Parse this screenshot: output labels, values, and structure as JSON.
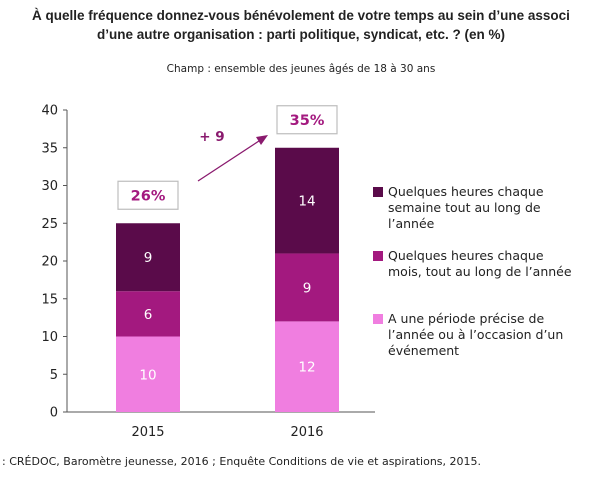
{
  "title_line1": "À quelle fréquence donnez-vous bénévolement de votre temps au sein d’une associ",
  "title_line2": "d’une autre organisation : parti politique, syndicat, etc. ? (en %)",
  "subtitle": "Champ : ensemble des jeunes âgés de 18 à 30 ans",
  "source": ": CRÉDOC, Baromètre jeunesse, 2016 ; Enquête Conditions de vie et aspirations, 2015.",
  "chart_data": {
    "type": "bar",
    "stacked": true,
    "categories": [
      "2015",
      "2016"
    ],
    "series": [
      {
        "name": "A une période précise de l’année ou à l’occasion d’un événement",
        "values": [
          10,
          12
        ],
        "color": "#f07ee0"
      },
      {
        "name": "Quelques heures chaque mois, tout au long de l’année",
        "values": [
          6,
          9
        ],
        "color": "#a3197f"
      },
      {
        "name": "Quelques heures chaque semaine tout au long de l’année",
        "values": [
          9,
          14
        ],
        "color": "#5a0b4a"
      }
    ],
    "totals": [
      "26%",
      "35%"
    ],
    "annotation": "+ 9",
    "ylim": [
      0,
      40
    ],
    "yticks": [
      "0",
      "5",
      "10",
      "15",
      "20",
      "25",
      "30",
      "35",
      "40"
    ],
    "legend_position": "right",
    "label_colors": {
      "total_box": "#a3197f",
      "arrow": "#8a1a6e"
    }
  }
}
